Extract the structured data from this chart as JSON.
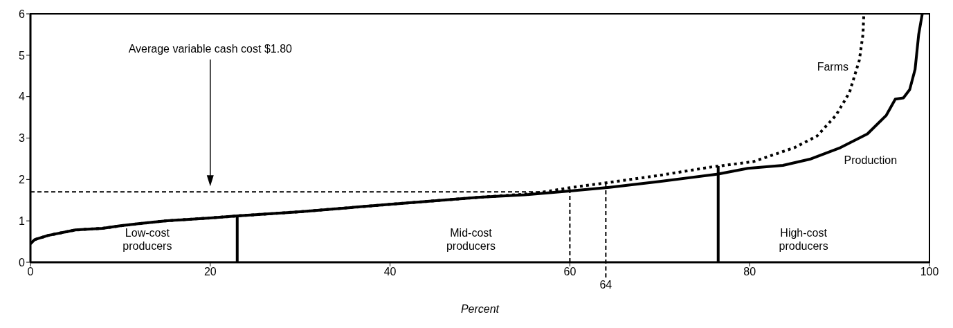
{
  "chart_data": {
    "type": "line",
    "xlabel": "Percent",
    "xlim": [
      0,
      100
    ],
    "xticks": [
      0,
      20,
      40,
      60,
      80,
      100
    ],
    "ylim": [
      0,
      6
    ],
    "yticks": [
      0,
      1,
      2,
      3,
      4,
      5,
      6
    ],
    "marker": "none",
    "series": [
      {
        "name": "Farms",
        "color": "#000000",
        "line_style": "dotted",
        "x": [
          0,
          0.5,
          2,
          5,
          8,
          10,
          12,
          15,
          20,
          23,
          30,
          40,
          50,
          56,
          60,
          64.4,
          70,
          75.7,
          80.4,
          85,
          87.5,
          89.6,
          91.1,
          92.2,
          92.6,
          92.7
        ],
        "values": [
          0.45,
          0.55,
          0.65,
          0.78,
          0.82,
          0.88,
          0.93,
          1.0,
          1.07,
          1.12,
          1.22,
          1.4,
          1.57,
          1.66,
          1.8,
          1.93,
          2.1,
          2.3,
          2.43,
          2.77,
          3.05,
          3.55,
          4.1,
          4.88,
          5.5,
          6.0
        ]
      },
      {
        "name": "Production",
        "color": "#000000",
        "line_style": "solid",
        "x": [
          0,
          0.5,
          2,
          5,
          8,
          10,
          12,
          15,
          20,
          23,
          30,
          40,
          50,
          55,
          60,
          64.4,
          70,
          76.5,
          79.8,
          83.7,
          86.7,
          90.1,
          93.1,
          95.2,
          96.2,
          97.1,
          97.8,
          98.4,
          98.8,
          99.2
        ],
        "values": [
          0.45,
          0.55,
          0.65,
          0.78,
          0.82,
          0.88,
          0.93,
          1.0,
          1.07,
          1.12,
          1.22,
          1.4,
          1.57,
          1.63,
          1.72,
          1.81,
          1.95,
          2.13,
          2.27,
          2.34,
          2.49,
          2.77,
          3.1,
          3.55,
          3.94,
          3.97,
          4.17,
          4.66,
          5.5,
          6.0
        ]
      }
    ],
    "ref_lines": [
      {
        "axis": "y",
        "value": 1.7,
        "line_style": "dashed"
      },
      {
        "axis": "x",
        "value": 23,
        "line_style": "solid"
      },
      {
        "axis": "x",
        "value": 60,
        "line_style": "dashed"
      },
      {
        "axis": "x",
        "value": 64,
        "line_style": "dashed",
        "label": "64"
      },
      {
        "axis": "x",
        "value": 76.5,
        "line_style": "solid"
      }
    ],
    "annotations": [
      "Average variable cash cost $1.80",
      "Low-cost\nproducers",
      "Mid-cost\nproducers",
      "High-cost\nproducers"
    ]
  }
}
